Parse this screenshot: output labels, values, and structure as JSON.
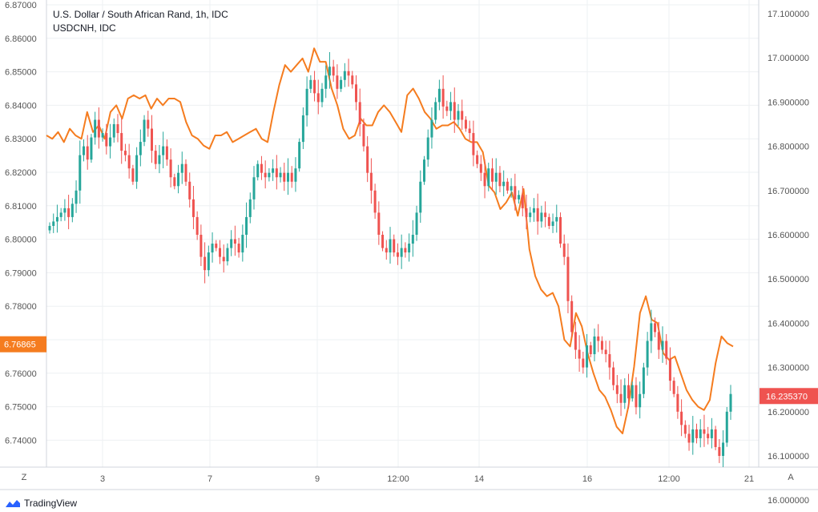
{
  "header": {
    "title": "U.S. Dollar / South African Rand, 1h, IDC",
    "compare_symbol": "USDCNH, IDC"
  },
  "footer": {
    "brand": "TradingView"
  },
  "buttons": {
    "left_axis": "Z",
    "right_axis": "A"
  },
  "colors": {
    "up": "#26a69a",
    "down": "#ef5350",
    "compare": "#f57c1f",
    "last_price": "#ef5350"
  },
  "chart_data": {
    "type": "candlestick",
    "series": [
      {
        "name": "U.S. Dollar / South African Rand, 1h, IDC",
        "axis": "right"
      },
      {
        "name": "USDCNH, IDC",
        "axis": "left"
      }
    ],
    "left_axis": {
      "ticks": [
        "6.87000",
        "6.86000",
        "6.85000",
        "6.84000",
        "6.83000",
        "6.82000",
        "6.81000",
        "6.80000",
        "6.79000",
        "6.78000",
        "6.77000",
        "6.76000",
        "6.75000",
        "6.74000"
      ],
      "last_label": "6.76865",
      "last_value": 6.76865,
      "range": [
        6.73,
        6.87
      ]
    },
    "right_axis": {
      "ticks": [
        "17.100000",
        "17.000000",
        "16.900000",
        "16.800000",
        "16.700000",
        "16.600000",
        "16.500000",
        "16.400000",
        "16.300000",
        "16.200000",
        "16.100000",
        "16.000000"
      ],
      "last_label": "16.235370",
      "last_value": 16.23537,
      "range": [
        16.0,
        17.1
      ]
    },
    "x_axis": {
      "ticks": [
        "3",
        "7",
        "9",
        "12:00",
        "14",
        "16",
        "12:00",
        "21"
      ]
    },
    "grid": true,
    "zar_closes": [
      16.62,
      16.63,
      16.64,
      16.65,
      16.66,
      16.64,
      16.67,
      16.7,
      16.78,
      16.8,
      16.77,
      16.82,
      16.86,
      16.82,
      16.83,
      16.8,
      16.82,
      16.85,
      16.83,
      16.79,
      16.78,
      16.75,
      16.72,
      16.78,
      16.81,
      16.86,
      16.84,
      16.79,
      16.76,
      16.78,
      16.8,
      16.77,
      16.73,
      16.71,
      16.74,
      16.76,
      16.72,
      16.68,
      16.64,
      16.6,
      16.55,
      16.52,
      16.56,
      16.58,
      16.57,
      16.55,
      16.54,
      16.57,
      16.59,
      16.58,
      16.56,
      16.6,
      16.64,
      16.68,
      16.73,
      16.76,
      16.74,
      16.73,
      16.74,
      16.75,
      16.73,
      16.74,
      16.72,
      16.74,
      16.72,
      16.75,
      16.81,
      16.87,
      16.93,
      16.95,
      16.92,
      16.9,
      16.93,
      16.96,
      16.98,
      16.96,
      16.93,
      16.95,
      16.97,
      16.96,
      16.94,
      16.9,
      16.85,
      16.8,
      16.74,
      16.7,
      16.65,
      16.6,
      16.57,
      16.56,
      16.59,
      16.56,
      16.55,
      16.57,
      16.56,
      16.58,
      16.6,
      16.65,
      16.72,
      16.77,
      16.82,
      16.86,
      16.9,
      16.93,
      16.89,
      16.88,
      16.9,
      16.86,
      16.88,
      16.86,
      16.84,
      16.83,
      16.78,
      16.76,
      16.74,
      16.71,
      16.75,
      16.72,
      16.74,
      16.71,
      16.72,
      16.7,
      16.71,
      16.68,
      16.69,
      16.66,
      16.64,
      16.65,
      16.66,
      16.63,
      16.65,
      16.64,
      16.62,
      16.63,
      16.64,
      16.58,
      16.55,
      16.45,
      16.38,
      16.34,
      16.32,
      16.3,
      16.35,
      16.33,
      16.37,
      16.36,
      16.34,
      16.33,
      16.3,
      16.26,
      16.24,
      16.22,
      16.26,
      16.23,
      16.26,
      16.21,
      16.24,
      16.3,
      16.36,
      16.4,
      16.38,
      16.34,
      16.36,
      16.32,
      16.27,
      16.24,
      16.2,
      16.17,
      16.15,
      16.13,
      16.16,
      16.14,
      16.16,
      16.15,
      16.14,
      16.16,
      16.12,
      16.1,
      16.13,
      16.2,
      16.24
    ],
    "cnh_values": [
      6.831,
      6.83,
      6.832,
      6.829,
      6.833,
      6.831,
      6.83,
      6.838,
      6.832,
      6.834,
      6.83,
      6.838,
      6.84,
      6.836,
      6.842,
      6.843,
      6.842,
      6.843,
      6.839,
      6.842,
      6.84,
      6.842,
      6.842,
      6.841,
      6.835,
      6.831,
      6.83,
      6.828,
      6.827,
      6.831,
      6.831,
      6.832,
      6.829,
      6.83,
      6.831,
      6.832,
      6.833,
      6.83,
      6.829,
      6.838,
      6.846,
      6.852,
      6.85,
      6.852,
      6.854,
      6.85,
      6.857,
      6.853,
      6.853,
      6.845,
      6.84,
      6.833,
      6.83,
      6.831,
      6.836,
      6.834,
      6.834,
      6.838,
      6.84,
      6.838,
      6.835,
      6.832,
      6.843,
      6.845,
      6.842,
      6.838,
      6.836,
      6.833,
      6.834,
      6.834,
      6.835,
      6.833,
      6.83,
      6.829,
      6.829,
      6.826,
      6.816,
      6.814,
      6.809,
      6.811,
      6.814,
      6.807,
      6.815,
      6.797,
      6.789,
      6.785,
      6.783,
      6.784,
      6.78,
      6.77,
      6.768,
      6.778,
      6.774,
      6.766,
      6.76,
      6.755,
      6.753,
      6.749,
      6.744,
      6.742,
      6.75,
      6.762,
      6.778,
      6.783,
      6.776,
      6.775,
      6.766,
      6.764,
      6.765,
      6.76,
      6.755,
      6.752,
      6.75,
      6.749,
      6.752,
      6.763,
      6.771,
      6.769,
      6.768
    ]
  }
}
